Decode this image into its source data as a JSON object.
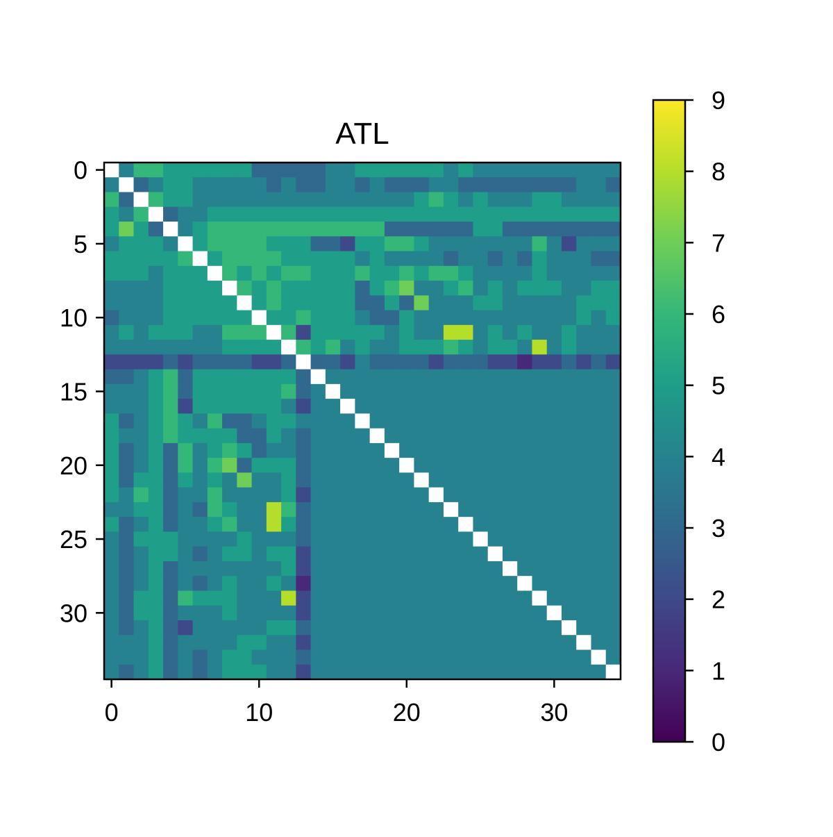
{
  "chart_data": {
    "type": "heatmap",
    "title": "ATL",
    "xlabel": "",
    "ylabel": "",
    "size": 35,
    "x_ticks": [
      0,
      10,
      20,
      30
    ],
    "y_ticks": [
      0,
      5,
      10,
      15,
      20,
      25,
      30
    ],
    "colorbar": {
      "range": [
        0,
        9
      ],
      "ticks": [
        0,
        1,
        2,
        3,
        4,
        5,
        6,
        7,
        8,
        9
      ],
      "colormap": "viridis"
    },
    "diagonal": "empty",
    "matrix": [
      "-466555555333334455555545",
      "4-3-5544444343344343334433333333443",
      "637-554444444444444445654544455444",
      "5466-445555555555555555555555555555",
      "57-33-5666666666666333333553333333331333",
      "45554-56666555332556654444444642444441555",
      "5555565-6666555554544443443435444335454444",
      "555455566-656655565565665444454444443414454",
      "4444555556-65555535674456454555445555343454",
      "444455555556-55553353744455444445555443434444",
      "344455555555-65554335444444444445454443434444",
      "4545554466666-5555545448845454454445554343344",
      "4444444455555656-5445556545548454445665543334444",
      "22223233332233332-3333233322122323222223112122"
    ]
  }
}
